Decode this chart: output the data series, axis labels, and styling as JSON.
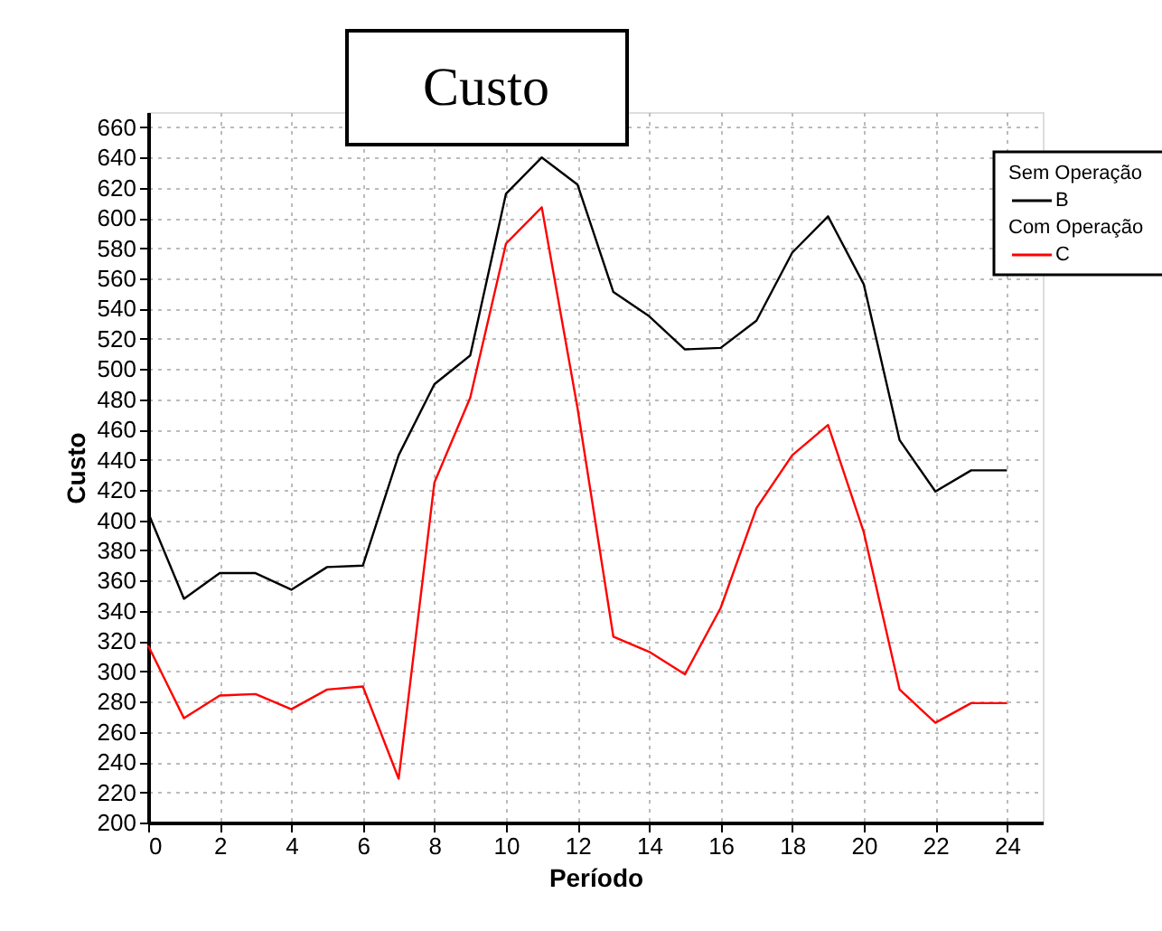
{
  "chart_data": {
    "type": "line",
    "title": "Custo",
    "xlabel": "Período",
    "ylabel": "Custo",
    "x": [
      0,
      1,
      2,
      3,
      4,
      5,
      6,
      7,
      8,
      9,
      10,
      11,
      12,
      13,
      14,
      15,
      16,
      17,
      18,
      19,
      20,
      21,
      22,
      23,
      24
    ],
    "series": [
      {
        "name": "Sem Operação\nB",
        "color": "#000000",
        "values": [
          405,
          348,
          365,
          365,
          354,
          369,
          370,
          443,
          490,
          509,
          616,
          640,
          622,
          551,
          535,
          513,
          514,
          532,
          577,
          601,
          556,
          453,
          419,
          433,
          433
        ]
      },
      {
        "name": "Com Operação\nC",
        "color": "#ff0000",
        "values": [
          317,
          269,
          284,
          285,
          275,
          288,
          290,
          229,
          425,
          481,
          583,
          607,
          474,
          323,
          313,
          298,
          342,
          408,
          443,
          463,
          392,
          288,
          266,
          279,
          279
        ]
      }
    ],
    "xlim": [
      0,
      25
    ],
    "xticks": [
      0,
      2,
      4,
      6,
      8,
      10,
      12,
      14,
      16,
      18,
      20,
      22,
      24
    ],
    "ylim": [
      200,
      670
    ],
    "yticks": [
      200,
      220,
      240,
      260,
      280,
      300,
      320,
      340,
      360,
      380,
      400,
      420,
      440,
      460,
      480,
      500,
      520,
      540,
      560,
      580,
      600,
      620,
      640,
      660
    ],
    "grid": true,
    "legend": "top right",
    "marker": "none",
    "line_style": "solid"
  }
}
